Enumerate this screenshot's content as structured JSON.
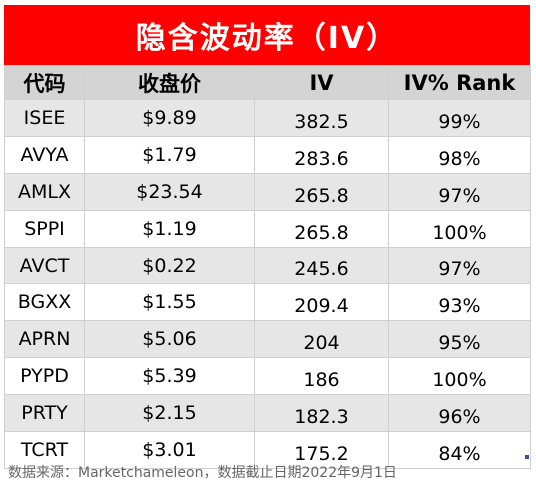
{
  "title": "隐含波动率（IV）",
  "columns": [
    "代码",
    "收盘价",
    "IV",
    "IV% Rank"
  ],
  "rows": [
    {
      "ticker": "ISEE",
      "close": "$9.89",
      "iv": "382.5",
      "rank": "99%"
    },
    {
      "ticker": "AVYA",
      "close": "$1.79",
      "iv": "283.6",
      "rank": "98%"
    },
    {
      "ticker": "AMLX",
      "close": "$23.54",
      "iv": "265.8",
      "rank": "97%"
    },
    {
      "ticker": "SPPI",
      "close": "$1.19",
      "iv": "265.8",
      "rank": "100%"
    },
    {
      "ticker": "AVCT",
      "close": "$0.22",
      "iv": "245.6",
      "rank": "97%"
    },
    {
      "ticker": "BGXX",
      "close": "$1.55",
      "iv": "209.4",
      "rank": "93%"
    },
    {
      "ticker": "APRN",
      "close": "$5.06",
      "iv": "204",
      "rank": "95%"
    },
    {
      "ticker": "PYPD",
      "close": "$5.39",
      "iv": "186",
      "rank": "100%"
    },
    {
      "ticker": "PRTY",
      "close": "$2.15",
      "iv": "182.3",
      "rank": "96%"
    },
    {
      "ticker": "TCRT",
      "close": "$3.01",
      "iv": "175.2",
      "rank": "84%"
    }
  ],
  "footer": "数据来源：Marketchameleon，数据截止日期2022年9月1日",
  "colors": {
    "title_bg": "#ff0000",
    "header_bg": "#d4d4d4",
    "band_bg": "#e6e6e6"
  }
}
